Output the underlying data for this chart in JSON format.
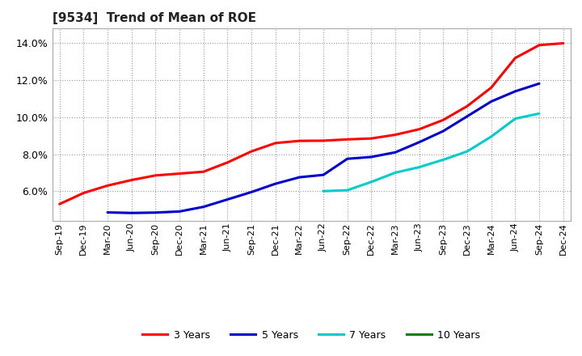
{
  "title": "[9534]  Trend of Mean of ROE",
  "x_labels": [
    "Sep-19",
    "Dec-19",
    "Mar-20",
    "Jun-20",
    "Sep-20",
    "Dec-20",
    "Mar-21",
    "Jun-21",
    "Sep-21",
    "Dec-21",
    "Mar-22",
    "Jun-22",
    "Sep-22",
    "Dec-22",
    "Mar-23",
    "Jun-23",
    "Sep-23",
    "Dec-23",
    "Mar-24",
    "Jun-24",
    "Sep-24",
    "Dec-24"
  ],
  "series_order": [
    "3 Years",
    "5 Years",
    "7 Years",
    "10 Years"
  ],
  "series": {
    "3 Years": {
      "color": "#FF0000",
      "values": [
        5.3,
        5.9,
        6.3,
        6.6,
        6.85,
        6.95,
        7.05,
        7.55,
        8.15,
        8.6,
        8.72,
        8.73,
        8.8,
        8.85,
        9.05,
        9.35,
        9.85,
        10.6,
        11.6,
        13.2,
        13.9,
        14.0
      ]
    },
    "5 Years": {
      "color": "#0000CC",
      "values": [
        null,
        null,
        4.85,
        4.82,
        4.84,
        4.9,
        5.15,
        5.55,
        5.95,
        6.4,
        6.75,
        6.88,
        7.75,
        7.85,
        8.1,
        8.65,
        9.25,
        10.05,
        10.85,
        11.4,
        11.82,
        null
      ]
    },
    "7 Years": {
      "color": "#00CCCC",
      "values": [
        null,
        null,
        null,
        null,
        null,
        null,
        null,
        null,
        null,
        null,
        null,
        6.0,
        6.05,
        6.5,
        7.0,
        7.3,
        7.7,
        8.15,
        8.95,
        9.92,
        10.2,
        null
      ]
    },
    "10 Years": {
      "color": "#008000",
      "values": [
        null,
        null,
        null,
        null,
        null,
        null,
        null,
        null,
        null,
        null,
        null,
        null,
        null,
        null,
        null,
        null,
        null,
        null,
        null,
        null,
        null,
        null
      ]
    }
  },
  "ylim": [
    4.4,
    14.8
  ],
  "yticks": [
    6.0,
    8.0,
    10.0,
    12.0,
    14.0
  ],
  "ytick_labels": [
    "6.0%",
    "8.0%",
    "10.0%",
    "12.0%",
    "14.0%"
  ],
  "background_color": "#FFFFFF",
  "grid_color": "#999999",
  "legend_entries": [
    "3 Years",
    "5 Years",
    "7 Years",
    "10 Years"
  ],
  "legend_colors": [
    "#FF0000",
    "#0000CC",
    "#00CCCC",
    "#008000"
  ],
  "title_fontsize": 11,
  "tick_fontsize": 8,
  "linewidth": 2.2
}
